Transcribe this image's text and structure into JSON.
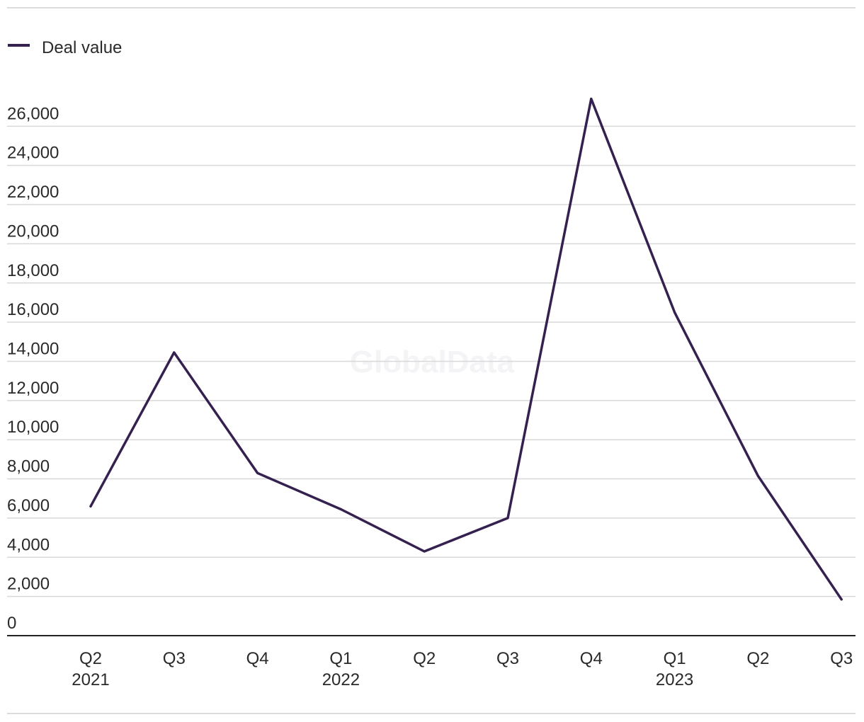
{
  "watermark": "GlobalData",
  "chart_data": {
    "type": "line",
    "categories": [
      "Q2",
      "Q3",
      "Q4",
      "Q1",
      "Q2",
      "Q3",
      "Q4",
      "Q1",
      "Q2",
      "Q3"
    ],
    "category_years": [
      "2021",
      "",
      "",
      "2022",
      "",
      "",
      "",
      "2023",
      "",
      ""
    ],
    "series": [
      {
        "name": "Deal value",
        "color": "#35214f",
        "values": [
          6600,
          14450,
          8300,
          6450,
          4300,
          6000,
          27400,
          16500,
          8150,
          1850
        ]
      }
    ],
    "y_ticks": [
      "0",
      "2,000",
      "4,000",
      "6,000",
      "8,000",
      "10,000",
      "12,000",
      "14,000",
      "16,000",
      "18,000",
      "20,000",
      "22,000",
      "24,000",
      "26,000"
    ],
    "ylim": [
      0,
      26000
    ],
    "grid": true,
    "legend_position": "top-left",
    "title": "",
    "xlabel": "",
    "ylabel": ""
  }
}
